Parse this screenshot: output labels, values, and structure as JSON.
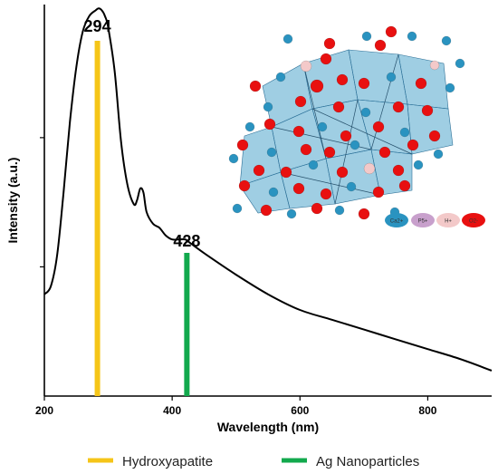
{
  "chart_data": {
    "type": "line",
    "title": "",
    "xlabel": "Wavelength (nm)",
    "ylabel": "Intensity (a.u.)",
    "xlim": [
      200,
      900
    ],
    "ylim": [
      0,
      1
    ],
    "x_ticks": [
      200,
      400,
      600,
      800
    ],
    "x_tick_labels": [
      "200",
      "400",
      "600",
      "800"
    ],
    "y_tick_labels_shown": false,
    "grid": false,
    "series": [
      {
        "color": "#000000",
        "x": [
          200,
          210,
          220,
          230,
          240,
          250,
          260,
          270,
          280,
          285,
          290,
          295,
          300,
          310,
          320,
          330,
          340,
          345,
          350,
          355,
          360,
          370,
          380,
          390,
          400,
          410,
          420,
          425,
          450,
          500,
          550,
          600,
          650,
          700,
          750,
          800,
          850,
          900
        ],
        "y": [
          0.26,
          0.28,
          0.36,
          0.52,
          0.7,
          0.84,
          0.93,
          0.97,
          0.985,
          0.99,
          0.985,
          0.97,
          0.94,
          0.83,
          0.65,
          0.54,
          0.49,
          0.5,
          0.53,
          0.52,
          0.47,
          0.44,
          0.43,
          0.41,
          0.4,
          0.4,
          0.4,
          0.395,
          0.365,
          0.31,
          0.26,
          0.22,
          0.195,
          0.17,
          0.145,
          0.12,
          0.095,
          0.065
        ]
      }
    ],
    "markers": [
      {
        "name": "Hydroxyapatite",
        "x": 283,
        "label": "294",
        "color": "#f5c518",
        "y_top": 1.0
      },
      {
        "name": "Ag Nanoparticles",
        "x": 423,
        "label": "428",
        "color": "#12a94d",
        "y_top": 0.43
      }
    ],
    "legend": {
      "placement": "bottom",
      "entries": [
        {
          "label": "Hydroxyapatite",
          "color": "#f5c518"
        },
        {
          "label": "Ag Nanoparticles",
          "color": "#12a94d"
        }
      ]
    }
  },
  "inset": {
    "description_icon": "crystal-structure-inset",
    "ion_legend": [
      {
        "label": "Ca2+",
        "color": "#2a93c0"
      },
      {
        "label": "P5+",
        "color": "#c8a0cc"
      },
      {
        "label": "H+",
        "color": "#f3c9c9"
      },
      {
        "label": "O2-",
        "color": "#e81010"
      }
    ]
  }
}
